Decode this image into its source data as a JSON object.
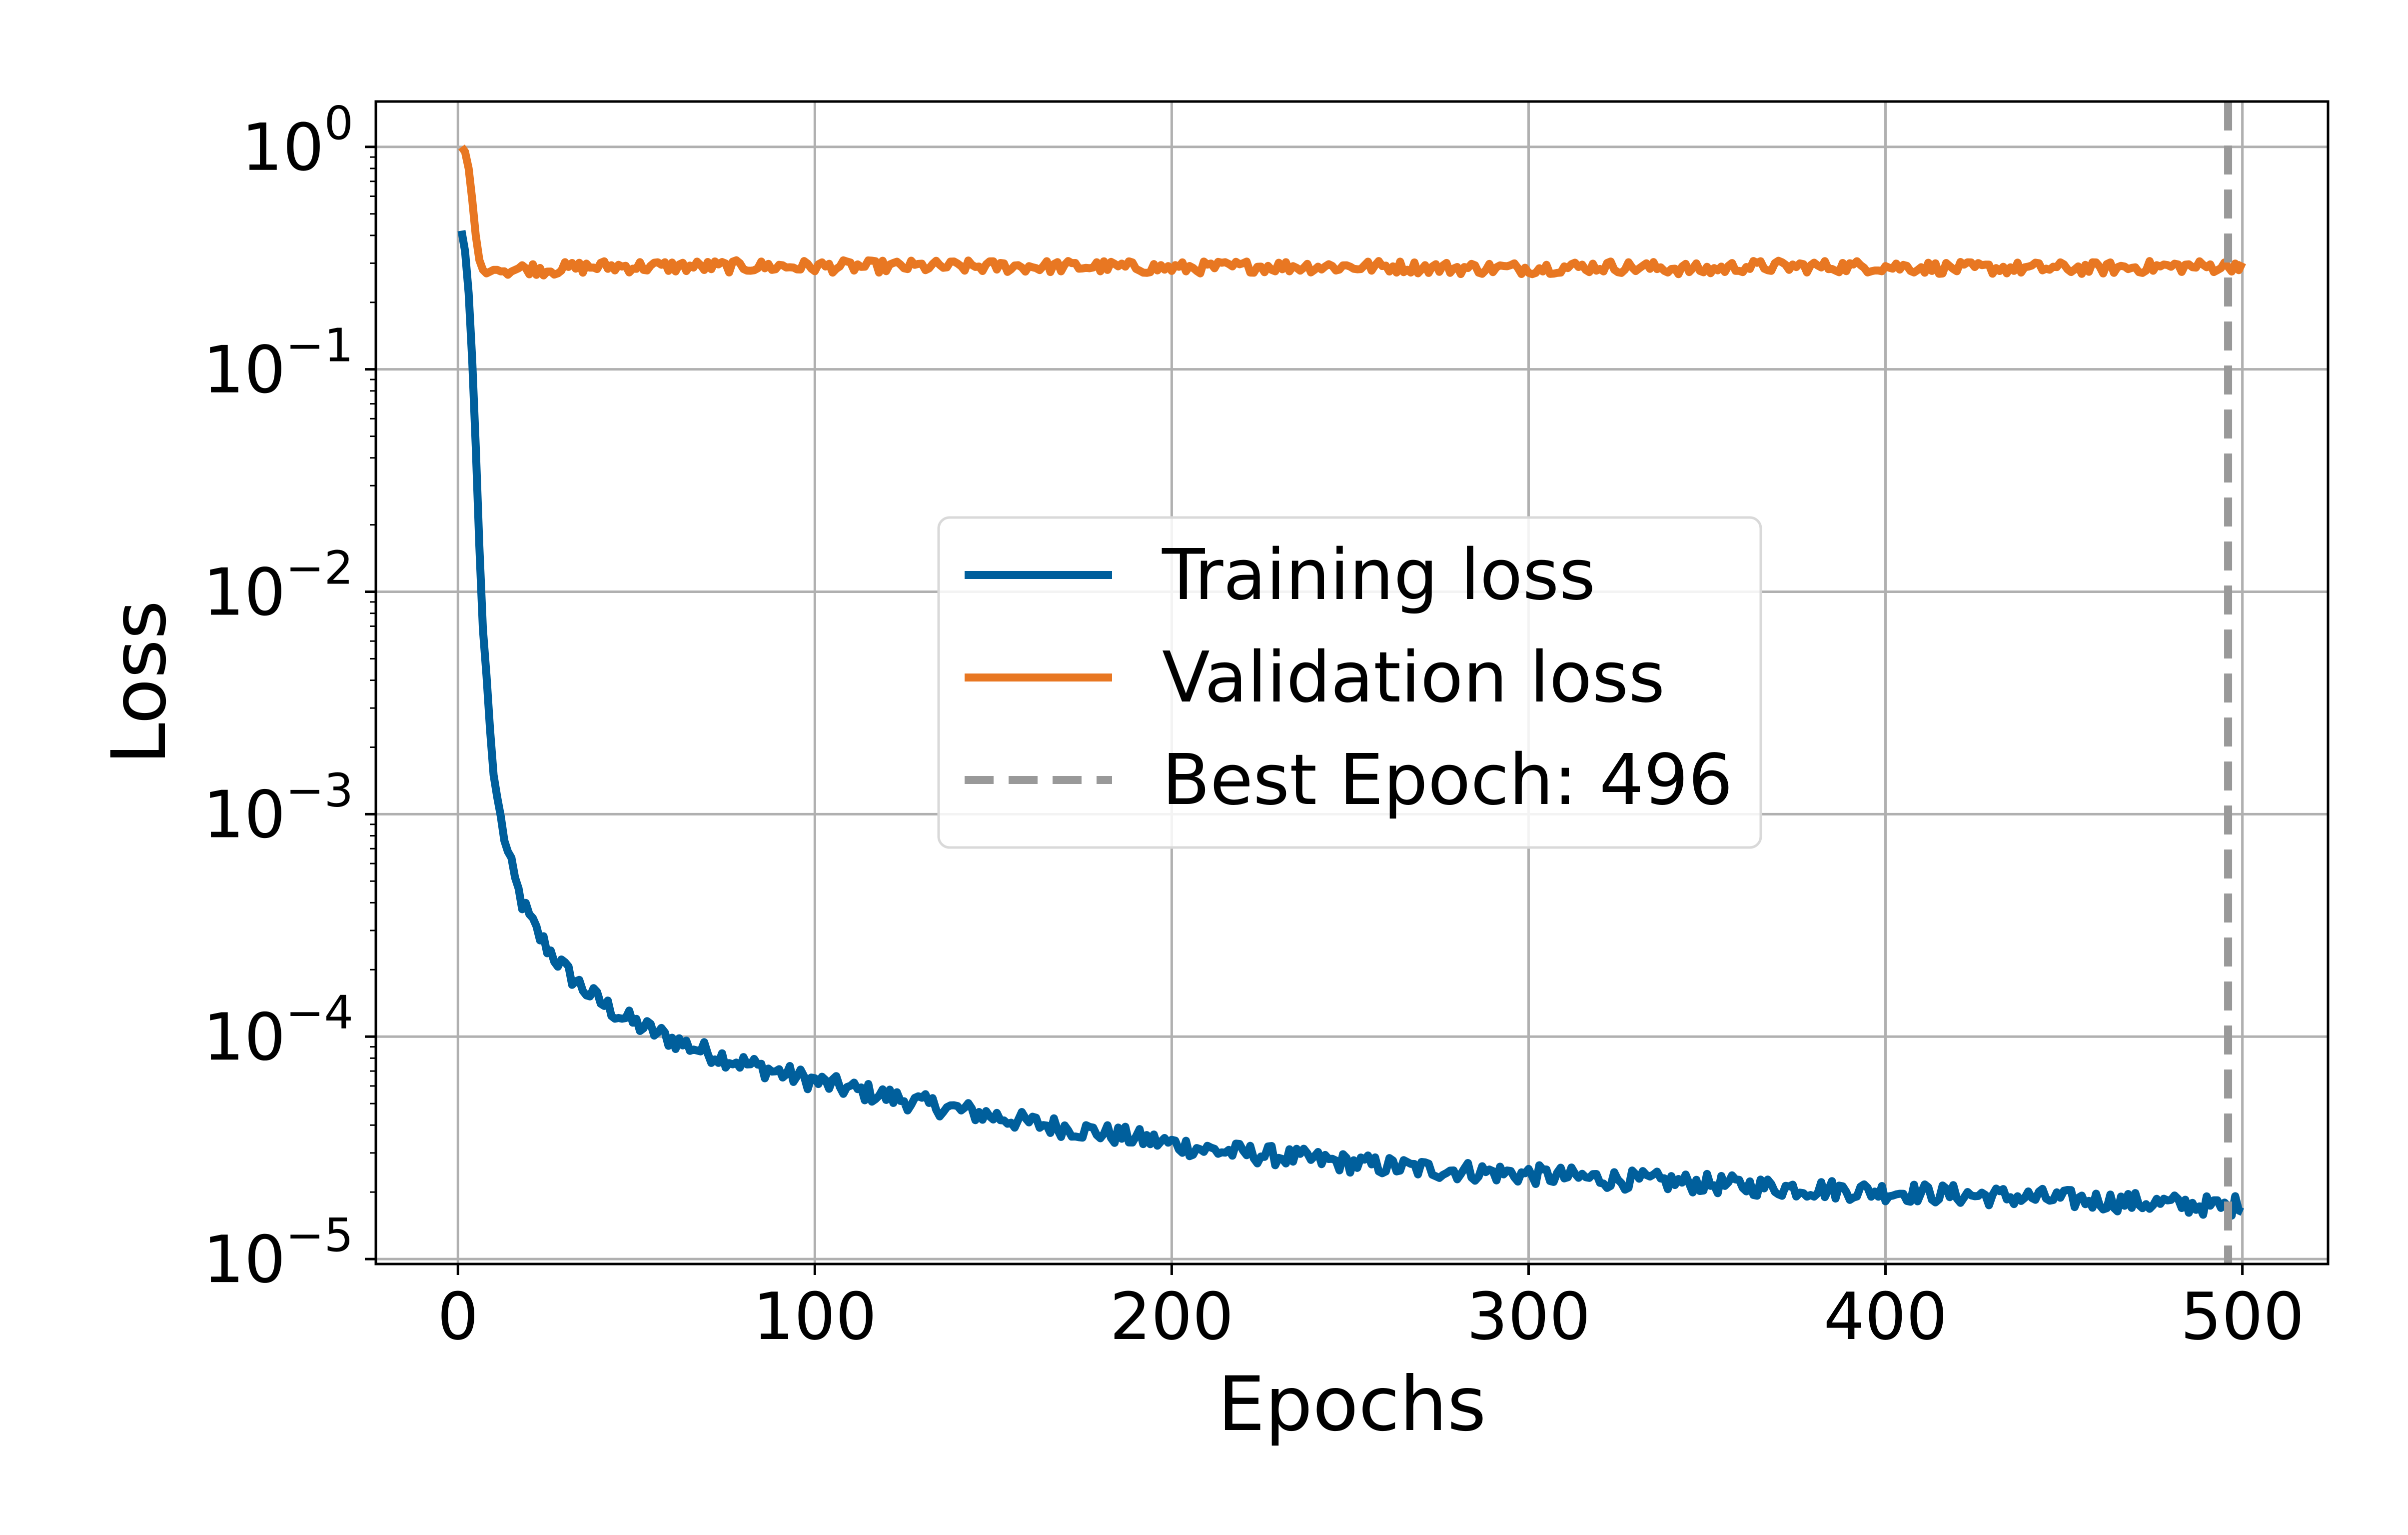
{
  "chart_data": {
    "type": "line",
    "xlabel": "Epochs",
    "ylabel": "Loss",
    "xlim": [
      -23,
      524
    ],
    "ylim": [
      9.5e-06,
      1.6
    ],
    "yscale": "log",
    "grid": true,
    "legend_position": "center",
    "x_ticks": [
      {
        "value": 0,
        "label": "0"
      },
      {
        "value": 100,
        "label": "100"
      },
      {
        "value": 200,
        "label": "200"
      },
      {
        "value": 300,
        "label": "300"
      },
      {
        "value": 400,
        "label": "400"
      },
      {
        "value": 500,
        "label": "500"
      }
    ],
    "y_ticks": [
      {
        "value": 1,
        "base": "10",
        "exp": "0"
      },
      {
        "value": 0.1,
        "base": "10",
        "exp": "−1"
      },
      {
        "value": 0.01,
        "base": "10",
        "exp": "−2"
      },
      {
        "value": 0.001,
        "base": "10",
        "exp": "−3"
      },
      {
        "value": 0.0001,
        "base": "10",
        "exp": "−4"
      },
      {
        "value": 1e-05,
        "base": "10",
        "exp": "−5"
      }
    ],
    "series": [
      {
        "name": "Training loss",
        "color": "#005f9c",
        "x": [
          1,
          2,
          3,
          4,
          5,
          6,
          7,
          8,
          9,
          10,
          12,
          14,
          16,
          18,
          20,
          23,
          26,
          30,
          35,
          40,
          45,
          50,
          60,
          70,
          80,
          90,
          100,
          110,
          120,
          130,
          140,
          150,
          160,
          170,
          180,
          190,
          200,
          210,
          220,
          230,
          240,
          250,
          260,
          270,
          280,
          290,
          300,
          310,
          320,
          330,
          340,
          350,
          360,
          370,
          380,
          390,
          400,
          410,
          420,
          430,
          440,
          450,
          460,
          470,
          480,
          490,
          496,
          500
        ],
        "y": [
          0.42,
          0.34,
          0.22,
          0.11,
          0.045,
          0.016,
          0.0068,
          0.0042,
          0.0024,
          0.0015,
          0.00095,
          0.00066,
          0.0005,
          0.0004,
          0.00034,
          0.00028,
          0.00024,
          0.0002,
          0.000165,
          0.000143,
          0.000126,
          0.000114,
          9.7e-05,
          8.5e-05,
          7.6e-05,
          6.9e-05,
          6.3e-05,
          5.8e-05,
          5.4e-05,
          5e-05,
          4.7e-05,
          4.4e-05,
          4.1e-05,
          3.9e-05,
          3.7e-05,
          3.5e-05,
          3.3e-05,
          3.1e-05,
          3e-05,
          2.9e-05,
          2.8e-05,
          2.7e-05,
          2.62e-05,
          2.55e-05,
          2.5e-05,
          2.45e-05,
          2.4e-05,
          2.35e-05,
          2.3e-05,
          2.26e-05,
          2.22e-05,
          2.18e-05,
          2.14e-05,
          2.1e-05,
          2.07e-05,
          2.04e-05,
          2.01e-05,
          1.98e-05,
          1.95e-05,
          1.92e-05,
          1.89e-05,
          1.86e-05,
          1.83e-05,
          1.8e-05,
          1.77e-05,
          1.74e-05,
          1.7e-05,
          1.8e-05
        ]
      },
      {
        "name": "Validation loss",
        "color": "#e87722",
        "x": [
          1,
          2,
          3,
          4,
          5,
          6,
          7,
          8,
          9,
          10,
          15,
          20,
          25,
          30,
          40,
          50,
          60,
          70,
          80,
          90,
          100,
          120,
          140,
          160,
          180,
          200,
          220,
          240,
          260,
          280,
          300,
          320,
          340,
          350,
          360,
          380,
          400,
          420,
          440,
          460,
          480,
          496,
          500
        ],
        "y": [
          1.0,
          0.95,
          0.8,
          0.58,
          0.4,
          0.31,
          0.28,
          0.27,
          0.275,
          0.28,
          0.28,
          0.285,
          0.28,
          0.285,
          0.29,
          0.29,
          0.29,
          0.29,
          0.29,
          0.29,
          0.29,
          0.29,
          0.29,
          0.29,
          0.29,
          0.285,
          0.29,
          0.29,
          0.29,
          0.285,
          0.285,
          0.29,
          0.285,
          0.28,
          0.29,
          0.29,
          0.29,
          0.285,
          0.285,
          0.285,
          0.29,
          0.29,
          0.3
        ]
      }
    ],
    "reference_lines": [
      {
        "name": "Best Epoch: 496",
        "x": 496,
        "color": "#999999",
        "style": "dashed"
      }
    ]
  }
}
